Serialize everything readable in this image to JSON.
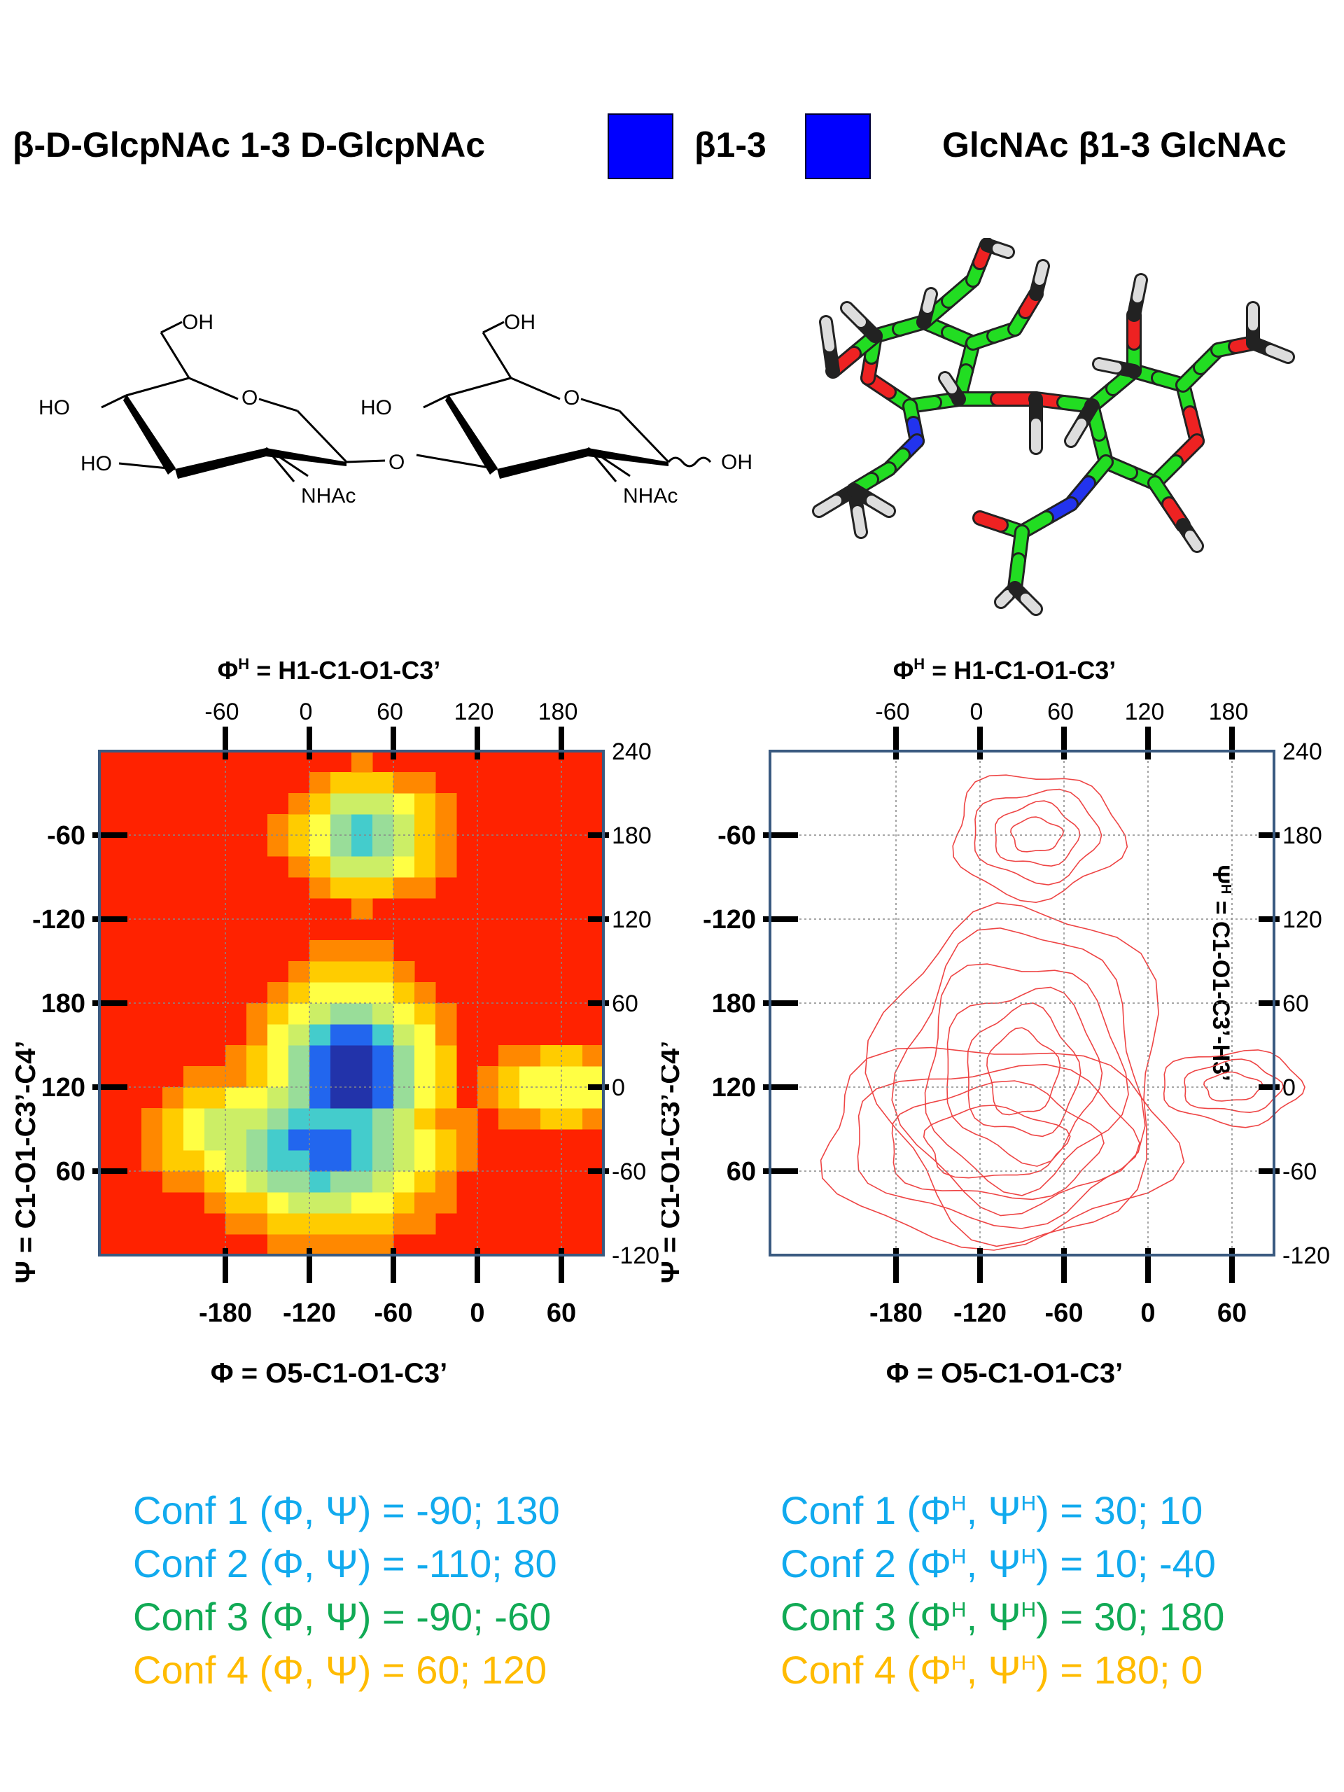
{
  "header": {
    "left": "β-D-GlcpNAc 1-3 D-GlcpNAc",
    "linkage": "β1-3",
    "right": "GlcNAc β1-3 GlcNAc",
    "symbol_color": "#0000ff"
  },
  "structure_2d": {
    "labels": [
      "OH",
      "HO",
      "O",
      "HO",
      "NHAc",
      "O",
      "OH",
      "HO",
      "O",
      "HO",
      "NHAc",
      "OH"
    ]
  },
  "model_3d": {
    "colors": {
      "carbon": "#22dd22",
      "oxygen": "#ee2222",
      "nitrogen": "#2233ee",
      "hydrogen": "#dddddd"
    }
  },
  "left_plot": {
    "top_axis_title": "Φ^H = H1-C1-O1-C3’",
    "bottom_axis_title": "Φ = O5-C1-O1-C3’",
    "left_axis_title": "Ψ = C1-O1-C3’-C4’",
    "right_axis_title": "Ψ^H = C1-O1-C3’-H3’",
    "top_ticks": [
      "-60",
      "0",
      "60",
      "120",
      "180"
    ],
    "bottom_ticks": [
      "-180",
      "-120",
      "-60",
      "0",
      "60"
    ],
    "left_ticks": [
      "-60",
      "-120",
      "180",
      "120",
      "60"
    ],
    "right_ticks": [
      "240",
      "180",
      "120",
      "60",
      "0",
      "-60",
      "-120"
    ]
  },
  "right_plot": {
    "top_axis_title": "Φ^H = H1-C1-O1-C3’",
    "bottom_axis_title": "Φ = O5-C1-O1-C3’",
    "left_axis_title": "Ψ = C1-O1-C3’-C4’",
    "right_axis_title": "Ψ^H = C1-O1-C3’-H3’",
    "top_ticks": [
      "-60",
      "0",
      "60",
      "120",
      "180"
    ],
    "bottom_ticks": [
      "-180",
      "-120",
      "-60",
      "0",
      "60"
    ],
    "left_ticks": [
      "-60",
      "-120",
      "180",
      "120",
      "60"
    ],
    "right_ticks": [
      "240",
      "180",
      "120",
      "60",
      "0",
      "-60",
      "-120"
    ]
  },
  "chart_data": [
    {
      "type": "heatmap",
      "x_axis": "Φ = O5-C1-O1-C3’",
      "y_axis": "Ψ = C1-O1-C3’-C4’",
      "colormap": [
        "#ff2200",
        "#ff8800",
        "#ffcc00",
        "#ffff44",
        "#ccee66",
        "#99dd99",
        "#44cccc",
        "#2266ee",
        "#2233aa"
      ],
      "background": "#ff2200",
      "regions": [
        {
          "name": "Conf 1",
          "phi": -90,
          "psi": 130,
          "level": 8
        },
        {
          "name": "Conf 2",
          "phi": -110,
          "psi": 80,
          "level": 7
        },
        {
          "name": "Conf 3",
          "phi": -90,
          "psi": -60,
          "level": 5
        },
        {
          "name": "Conf 4",
          "phi": 60,
          "psi": 120,
          "level": 3
        }
      ]
    },
    {
      "type": "contour",
      "x_axis": "Φ = O5-C1-O1-C3’",
      "y_axis": "Ψ = C1-O1-C3’-C4’",
      "line_color": "#ee4444",
      "regions": [
        {
          "name": "Conf 1",
          "phi": -90,
          "psi": 130
        },
        {
          "name": "Conf 2",
          "phi": -110,
          "psi": 80
        },
        {
          "name": "Conf 3",
          "phi": -90,
          "psi": -60
        },
        {
          "name": "Conf 4",
          "phi": 60,
          "psi": 120
        }
      ]
    }
  ],
  "conformations_left": [
    {
      "text": "Conf 1 (Φ, Ψ) = -90; 130",
      "color": "#11aaee"
    },
    {
      "text": "Conf 2 (Φ, Ψ) =  -110; 80",
      "color": "#11aaee"
    },
    {
      "text": "Conf 3 (Φ, Ψ) =  -90; -60",
      "color": "#11aa55"
    },
    {
      "text": "Conf 4 (Φ, Ψ) =  60; 120",
      "color": "#ffbb00"
    }
  ],
  "conformations_right": [
    {
      "text": "Conf 1 (ΦH, ΨH) = 30; 10",
      "color": "#11aaee"
    },
    {
      "text": "Conf 2 (ΦH, ΨH) =  10; -40",
      "color": "#11aaee"
    },
    {
      "text": "Conf 3 (ΦH, ΨH) =  30; 180",
      "color": "#11aa55"
    },
    {
      "text": "Conf 4 (ΦH, ΨH) = 180; 0",
      "color": "#ffbb00"
    }
  ]
}
